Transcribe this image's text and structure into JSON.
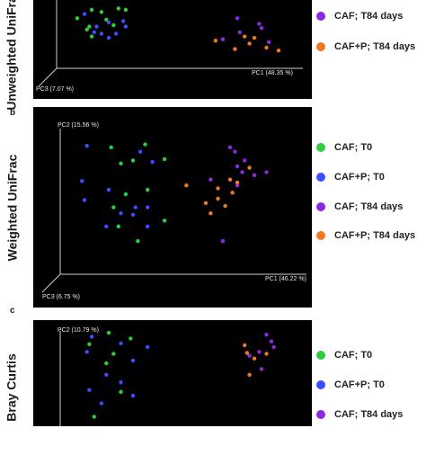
{
  "colors": {
    "CAF; T0": "#2ecc40",
    "CAF+P; T0": "#3a4dff",
    "CAF; T84 days": "#8a2be2",
    "CAF+P; T84 days": "#f07820"
  },
  "chart_data": [
    {
      "type": "scatter",
      "letter": "",
      "title": "Unweighted UniFrac",
      "pc1_label": "PC1 (48.35 %)",
      "pc2_label": "",
      "pc3_label": "PC3 (7.07 %)",
      "legend": [
        "CAF; T84 days",
        "CAF+P; T84 days"
      ],
      "series": [
        {
          "name": "CAF; T0",
          "points": [
            [
              0.07,
              0.74
            ],
            [
              0.13,
              0.86
            ],
            [
              0.12,
              0.62
            ],
            [
              0.17,
              0.83
            ],
            [
              0.19,
              0.72
            ],
            [
              0.13,
              0.48
            ],
            [
              0.24,
              0.88
            ],
            [
              0.27,
              0.86
            ],
            [
              0.11,
              0.58
            ],
            [
              0.22,
              0.64
            ]
          ]
        },
        {
          "name": "CAF+P; T0",
          "points": [
            [
              0.15,
              0.62
            ],
            [
              0.17,
              0.52
            ],
            [
              0.2,
              0.68
            ],
            [
              0.23,
              0.52
            ],
            [
              0.27,
              0.62
            ],
            [
              0.26,
              0.7
            ],
            [
              0.1,
              0.8
            ],
            [
              0.2,
              0.46
            ],
            [
              0.14,
              0.54
            ]
          ]
        },
        {
          "name": "CAF; T84 days",
          "points": [
            [
              0.73,
              0.74
            ],
            [
              0.82,
              0.66
            ],
            [
              0.83,
              0.6
            ],
            [
              0.74,
              0.54
            ],
            [
              0.67,
              0.44
            ],
            [
              0.86,
              0.4
            ]
          ]
        },
        {
          "name": "CAF+P; T84 days",
          "points": [
            [
              0.64,
              0.42
            ],
            [
              0.78,
              0.38
            ],
            [
              0.85,
              0.32
            ],
            [
              0.76,
              0.48
            ],
            [
              0.8,
              0.46
            ],
            [
              0.9,
              0.28
            ],
            [
              0.72,
              0.3
            ]
          ]
        }
      ]
    },
    {
      "type": "scatter",
      "letter": "b",
      "title": "Weighted UniFrac",
      "pc1_label": "PC1 (46.22 %)",
      "pc2_label": "PC2 (15.56 %)",
      "pc3_label": "PC3 (6.75 %)",
      "legend": [
        "CAF; T0",
        "CAF+P; T0",
        "CAF; T84 days",
        "CAF+P; T84 days"
      ],
      "series": [
        {
          "name": "CAF; T0",
          "points": [
            [
              0.21,
              0.86
            ],
            [
              0.25,
              0.75
            ],
            [
              0.3,
              0.77
            ],
            [
              0.35,
              0.88
            ],
            [
              0.43,
              0.78
            ],
            [
              0.36,
              0.57
            ],
            [
              0.27,
              0.54
            ],
            [
              0.22,
              0.45
            ],
            [
              0.24,
              0.32
            ],
            [
              0.32,
              0.22
            ],
            [
              0.43,
              0.36
            ]
          ]
        },
        {
          "name": "CAF+P; T0",
          "points": [
            [
              0.11,
              0.87
            ],
            [
              0.33,
              0.83
            ],
            [
              0.38,
              0.76
            ],
            [
              0.2,
              0.57
            ],
            [
              0.09,
              0.63
            ],
            [
              0.1,
              0.5
            ],
            [
              0.25,
              0.41
            ],
            [
              0.19,
              0.32
            ],
            [
              0.31,
              0.45
            ],
            [
              0.36,
              0.45
            ],
            [
              0.3,
              0.4
            ],
            [
              0.36,
              0.32
            ]
          ]
        },
        {
          "name": "CAF; T84 days",
          "points": [
            [
              0.7,
              0.86
            ],
            [
              0.72,
              0.83
            ],
            [
              0.76,
              0.77
            ],
            [
              0.73,
              0.73
            ],
            [
              0.75,
              0.69
            ],
            [
              0.85,
              0.69
            ],
            [
              0.8,
              0.67
            ],
            [
              0.62,
              0.64
            ],
            [
              0.73,
              0.6
            ],
            [
              0.67,
              0.22
            ]
          ]
        },
        {
          "name": "CAF+P; T84 days",
          "points": [
            [
              0.52,
              0.6
            ],
            [
              0.65,
              0.58
            ],
            [
              0.73,
              0.62
            ],
            [
              0.71,
              0.55
            ],
            [
              0.68,
              0.46
            ],
            [
              0.62,
              0.41
            ],
            [
              0.6,
              0.48
            ],
            [
              0.65,
              0.51
            ],
            [
              0.78,
              0.72
            ],
            [
              0.7,
              0.64
            ]
          ]
        }
      ]
    },
    {
      "type": "scatter",
      "letter": "c",
      "title": "Bray Curtis",
      "pc1_label": "",
      "pc2_label": "PC2 (10.79 %)",
      "pc3_label": "",
      "legend": [
        "CAF; T0",
        "CAF+P; T0",
        "CAF; T84 days"
      ],
      "series": [
        {
          "name": "CAF; T0",
          "points": [
            [
              0.2,
              0.98
            ],
            [
              0.29,
              0.92
            ],
            [
              0.12,
              0.86
            ],
            [
              0.22,
              0.76
            ],
            [
              0.19,
              0.66
            ],
            [
              0.25,
              0.36
            ],
            [
              0.14,
              0.1
            ]
          ]
        },
        {
          "name": "CAF+P; T0",
          "points": [
            [
              0.13,
              0.94
            ],
            [
              0.25,
              0.87
            ],
            [
              0.36,
              0.83
            ],
            [
              0.11,
              0.78
            ],
            [
              0.3,
              0.69
            ],
            [
              0.19,
              0.54
            ],
            [
              0.25,
              0.46
            ],
            [
              0.12,
              0.38
            ],
            [
              0.3,
              0.32
            ],
            [
              0.17,
              0.24
            ]
          ]
        },
        {
          "name": "CAF; T84 days",
          "points": [
            [
              0.85,
              0.96
            ],
            [
              0.87,
              0.89
            ],
            [
              0.88,
              0.83
            ],
            [
              0.82,
              0.78
            ],
            [
              0.78,
              0.74
            ],
            [
              0.83,
              0.6
            ]
          ]
        },
        {
          "name": "CAF+P; T84 days",
          "points": [
            [
              0.76,
              0.85
            ],
            [
              0.77,
              0.77
            ],
            [
              0.8,
              0.71
            ],
            [
              0.85,
              0.76
            ],
            [
              0.78,
              0.54
            ]
          ]
        }
      ]
    }
  ]
}
